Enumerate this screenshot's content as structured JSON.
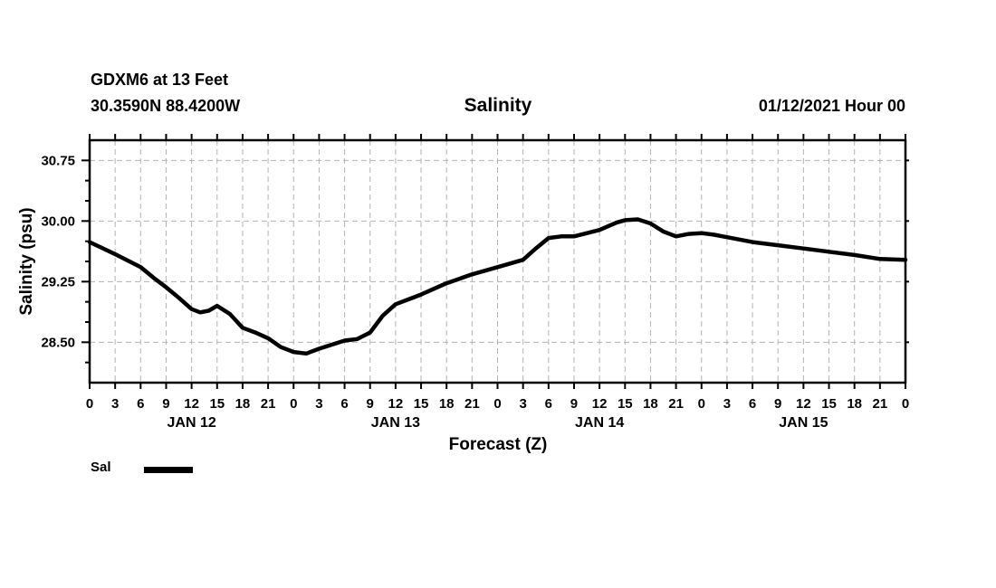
{
  "colors": {
    "line": "#000000",
    "grid": "#b3b3b3",
    "text": "#000000",
    "background": "#ffffff"
  },
  "chart_data": {
    "type": "line",
    "station": "GDXM6 at 13 Feet",
    "location": "30.3590N 88.4200W",
    "title": "Salinity",
    "forecast_cycle": "01/12/2021 Hour 00",
    "xlabel": "Forecast (Z)",
    "ylabel": "Salinity (psu)",
    "ylim": [
      28.0,
      31.0
    ],
    "xlim_hours": [
      0,
      96
    ],
    "grid": {
      "style": "dashed",
      "color": "#b3b3b3",
      "vertical_every_hours": 3,
      "horizontal_at": [
        30.75,
        30.0,
        29.25,
        28.5
      ]
    },
    "y_axis": {
      "major_ticks": [
        {
          "value": 30.75,
          "label": "30.75"
        },
        {
          "value": 30.0,
          "label": "30.00"
        },
        {
          "value": 29.25,
          "label": "29.25"
        },
        {
          "value": 28.5,
          "label": "28.50"
        }
      ],
      "minor_tick_step": 0.25
    },
    "x_axis": {
      "tick_step_hours": 3,
      "tick_labels": [
        "0",
        "3",
        "6",
        "9",
        "12",
        "15",
        "18",
        "21",
        "0",
        "3",
        "6",
        "9",
        "12",
        "15",
        "18",
        "21",
        "0",
        "3",
        "6",
        "9",
        "12",
        "15",
        "18",
        "21",
        "0",
        "3",
        "6",
        "9",
        "12",
        "15",
        "18",
        "21",
        "0"
      ],
      "day_labels": [
        {
          "label": "JAN 12",
          "center_hour": 12
        },
        {
          "label": "JAN 13",
          "center_hour": 36
        },
        {
          "label": "JAN 14",
          "center_hour": 60
        },
        {
          "label": "JAN 15",
          "center_hour": 84
        }
      ]
    },
    "legend": [
      {
        "label": "Sal",
        "color": "#000000"
      }
    ],
    "series": [
      {
        "name": "Sal",
        "color": "#000000",
        "points_hour_value": [
          [
            0,
            29.74
          ],
          [
            3,
            29.59
          ],
          [
            6,
            29.43
          ],
          [
            7.5,
            29.3
          ],
          [
            9,
            29.18
          ],
          [
            10.5,
            29.05
          ],
          [
            12,
            28.91
          ],
          [
            13,
            28.87
          ],
          [
            14,
            28.89
          ],
          [
            15,
            28.95
          ],
          [
            16.5,
            28.85
          ],
          [
            18,
            28.68
          ],
          [
            19.5,
            28.62
          ],
          [
            21,
            28.55
          ],
          [
            22.5,
            28.44
          ],
          [
            24,
            28.38
          ],
          [
            25.5,
            28.36
          ],
          [
            27,
            28.42
          ],
          [
            28.5,
            28.47
          ],
          [
            30,
            28.52
          ],
          [
            31.5,
            28.54
          ],
          [
            33,
            28.62
          ],
          [
            34.5,
            28.83
          ],
          [
            36,
            28.97
          ],
          [
            37.5,
            29.03
          ],
          [
            39,
            29.09
          ],
          [
            42,
            29.23
          ],
          [
            45,
            29.34
          ],
          [
            48,
            29.43
          ],
          [
            51,
            29.52
          ],
          [
            52.5,
            29.66
          ],
          [
            54,
            29.79
          ],
          [
            55.5,
            29.81
          ],
          [
            57,
            29.81
          ],
          [
            60,
            29.89
          ],
          [
            62,
            29.98
          ],
          [
            63,
            30.01
          ],
          [
            64.5,
            30.02
          ],
          [
            66,
            29.97
          ],
          [
            67.5,
            29.87
          ],
          [
            69,
            29.81
          ],
          [
            70.5,
            29.84
          ],
          [
            72,
            29.85
          ],
          [
            73.5,
            29.83
          ],
          [
            75,
            29.8
          ],
          [
            78,
            29.74
          ],
          [
            81,
            29.7
          ],
          [
            84,
            29.66
          ],
          [
            87,
            29.62
          ],
          [
            90,
            29.58
          ],
          [
            93,
            29.53
          ],
          [
            96,
            29.52
          ]
        ]
      }
    ]
  }
}
